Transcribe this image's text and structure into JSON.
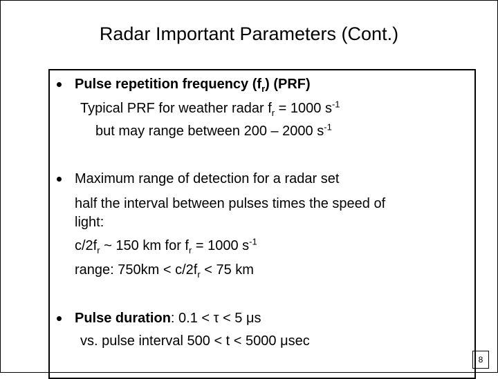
{
  "title": "Radar Important Parameters (Cont.)",
  "bullets": [
    {
      "lines": [
        [
          {
            "text": "Pulse repetition frequency (f",
            "bold": true
          },
          {
            "text": "r",
            "bold": true,
            "sub": true
          },
          {
            "text": ") (PRF)",
            "bold": true
          }
        ],
        [
          {
            "text": "Typical PRF for weather radar f"
          },
          {
            "text": "r",
            "sub": true
          },
          {
            "text": " = 1000 s"
          },
          {
            "text": "-1",
            "sup": true
          }
        ],
        [
          {
            "text": "but may range between 200 – 2000 s"
          },
          {
            "text": "-1",
            "sup": true
          }
        ]
      ]
    },
    {
      "lines": [
        [
          {
            "text": "Maximum range of detection for a radar set"
          }
        ],
        [
          {
            "text": "half the interval between pulses times the speed of"
          }
        ],
        [
          {
            "text": "light:"
          }
        ],
        [
          {
            "text": "c/2f"
          },
          {
            "text": "r",
            "sub": true
          },
          {
            "text": " ~ 150 km for f"
          },
          {
            "text": "r",
            "sub": true
          },
          {
            "text": " = 1000 s"
          },
          {
            "text": "-1",
            "sup": true
          }
        ],
        [
          {
            "text": "range: 750km < c/2f"
          },
          {
            "text": "r",
            "sub": true
          },
          {
            "text": " < 75 km"
          }
        ]
      ]
    },
    {
      "lines": [
        [
          {
            "text": "Pulse duration",
            "bold": true
          },
          {
            "text": ": 0.1 < τ < 5 μs"
          }
        ],
        [
          {
            "text": "vs. pulse interval 500 < t < 5000 μsec"
          }
        ]
      ]
    }
  ],
  "page_number": "8"
}
